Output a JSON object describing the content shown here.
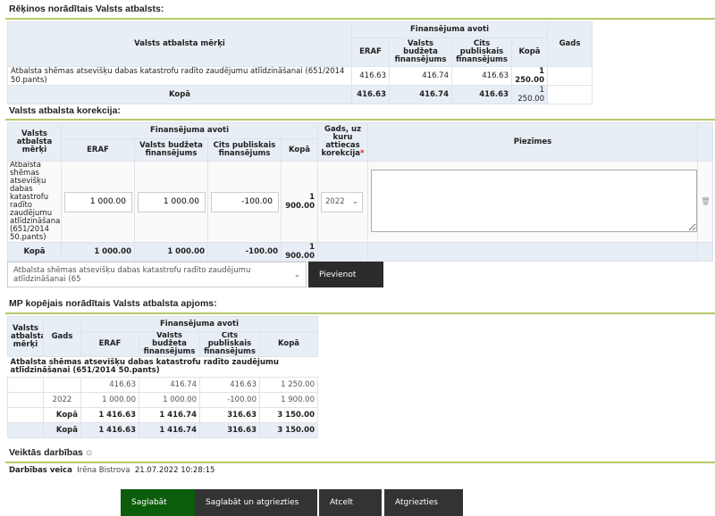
{
  "section1": {
    "title": "Rēķinos norādītais Valsts atbalsts:",
    "headers": {
      "goal": "Valsts atbalsta mērķi",
      "sources": "Finansējuma avoti",
      "eraf": "ERAF",
      "state": "Valsts budžeta finansējums",
      "other": "Cits publiskais finansējums",
      "total": "Kopā",
      "year": "Gads"
    },
    "row": {
      "goal": "Atbalsta shēmas atsevišķu dabas katastrofu radīto zaudējumu atlīdzināšanai (651/2014 50.pants)",
      "eraf": "416.63",
      "state": "416.74",
      "other": "416.63",
      "total": "1 250.00",
      "year": ""
    },
    "sum": {
      "label": "Kopā",
      "eraf": "416.63",
      "state": "416.74",
      "other": "416.63",
      "total": "1 250.00"
    }
  },
  "section2": {
    "title": "Valsts atbalsta korekcija:",
    "headers": {
      "goal": "Valsts atbalsta mērķi",
      "sources": "Finansējuma avoti",
      "eraf": "ERAF",
      "state": "Valsts budžeta finansējums",
      "other": "Cits publiskais finansējums",
      "total": "Kopā",
      "year": "Gads, uz kuru attiecas korekcija",
      "required": "*",
      "notes": "Piezīmes"
    },
    "row": {
      "goal": "Atbalsta shēmas atsevišķu dabas katastrofu radīto zaudējumu atlīdzināšanai (651/2014 50.pants)",
      "eraf": "1 000.00",
      "state": "1 000.00",
      "other": "-100.00",
      "total": "1 900.00",
      "year": "2022",
      "notes": ""
    },
    "sum": {
      "label": "Kopā",
      "eraf": "1 000.00",
      "state": "1 000.00",
      "other": "-100.00",
      "total": "1 900.00"
    },
    "add_select": "Atbalsta shēmas atsevišķu dabas katastrofu radīto zaudējumu atlīdzināšanai (65",
    "add_button": "Pievienot"
  },
  "section3": {
    "title": "MP kopējais norādītais Valsts atbalsta apjoms:",
    "headers": {
      "goal": "Valsts atbalsta mērķi",
      "year": "Gads",
      "sources": "Finansējuma avoti",
      "eraf": "ERAF",
      "state": "Valsts budžeta finansējums",
      "other": "Cits publiskais finansējums",
      "total": "Kopā"
    },
    "group": "Atbalsta shēmas atsevišķu dabas katastrofu radīto zaudējumu atlīdzināšanai (651/2014 50.pants)",
    "rows": [
      {
        "year": "",
        "eraf": "416.63",
        "state": "416.74",
        "other": "416.63",
        "total": "1 250.00"
      },
      {
        "year": "2022",
        "eraf": "1 000.00",
        "state": "1 000.00",
        "other": "-100.00",
        "total": "1 900.00"
      },
      {
        "year": "Kopā",
        "eraf": "1 416.63",
        "state": "1 416.74",
        "other": "316.63",
        "total": "3 150.00"
      }
    ],
    "grand": {
      "label": "Kopā",
      "eraf": "1 416.63",
      "state": "1 416.74",
      "other": "316.63",
      "total": "3 150.00"
    }
  },
  "actions": {
    "title": "Veiktās darbības",
    "label": "Darbības veica",
    "user": "Irēna Bistrova",
    "timestamp": "21.07.2022 10:28:15"
  },
  "buttons": {
    "save": "Saglabāt",
    "save_return": "Saglabāt un atgriezties",
    "cancel": "Atcelt",
    "back": "Atgriezties"
  },
  "colors": {
    "accent_line": "#b5c96a",
    "save": "#0b5c0b",
    "button": "#333333",
    "header_bg": "#e8eef5"
  }
}
